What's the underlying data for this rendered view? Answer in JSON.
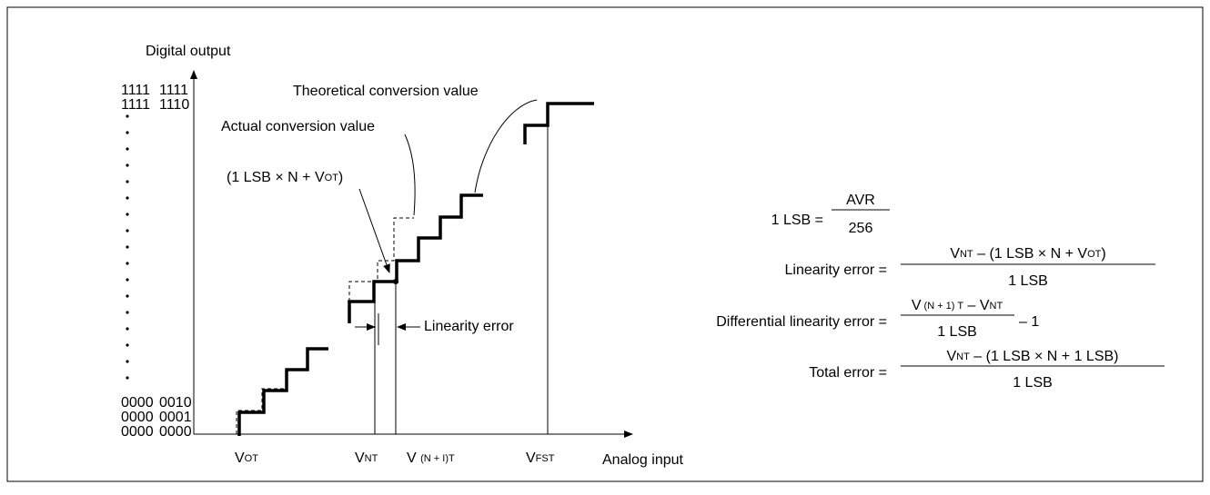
{
  "y_axis_label": "Digital output",
  "x_axis_label": "Analog input",
  "output_codes": [
    [
      "1111",
      "1111"
    ],
    [
      "1111",
      "1110"
    ],
    [
      "0000",
      "0010"
    ],
    [
      "0000",
      "0001"
    ],
    [
      "0000",
      "0000"
    ]
  ],
  "input_levels": [
    [
      {
        "text": "V"
      },
      {
        "text": "OT",
        "sub": true
      }
    ],
    [
      {
        "text": "V"
      },
      {
        "text": "NT",
        "sub": true
      }
    ],
    [
      {
        "text": "V "
      },
      {
        "text": "(N + I)T",
        "sub": true
      }
    ],
    [
      {
        "text": "V"
      },
      {
        "text": "FST",
        "sub": true
      }
    ]
  ],
  "annotations": {
    "theoretical": "Theoretical conversion value",
    "actual": "Actual conversion value",
    "point": [
      {
        "text": "(1 LSB × N + V"
      },
      {
        "text": "OT",
        "sub": true
      },
      {
        "text": ")"
      }
    ],
    "linearity_error": "Linearity error"
  },
  "formulas": [
    {
      "label": "1 LSB =",
      "numerator": [
        {
          "text": "AVR"
        }
      ],
      "denominator": [
        {
          "text": "256"
        }
      ]
    },
    {
      "label": "Linearity error =",
      "numerator": [
        {
          "text": "V"
        },
        {
          "text": "NT",
          "sub": true
        },
        {
          "text": " – (1 LSB × N + V"
        },
        {
          "text": "OT",
          "sub": true
        },
        {
          "text": ")"
        }
      ],
      "denominator": [
        {
          "text": "1 LSB"
        }
      ]
    },
    {
      "label": "Differential linearity error =",
      "numerator": [
        {
          "text": "V"
        },
        {
          "text": " (N + 1) T",
          "sub": true
        },
        {
          "text": " – V"
        },
        {
          "text": "NT",
          "sub": true
        }
      ],
      "denominator": [
        {
          "text": "1 LSB"
        }
      ],
      "suffix": "– 1"
    },
    {
      "label": "Total error =",
      "numerator": [
        {
          "text": "V"
        },
        {
          "text": "NT",
          "sub": true
        },
        {
          "text": " – (1 LSB × N + 1 LSB)"
        }
      ],
      "denominator": [
        {
          "text": "1 LSB"
        }
      ]
    }
  ]
}
